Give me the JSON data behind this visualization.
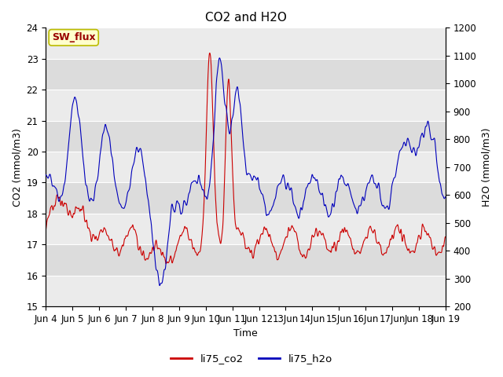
{
  "title": "CO2 and H2O",
  "xlabel": "Time",
  "ylabel_left": "CO2 (mmol/m3)",
  "ylabel_right": "H2O (mmol/m3)",
  "ylim_left": [
    15.0,
    24.0
  ],
  "ylim_right": [
    200,
    1200
  ],
  "yticks_left": [
    15.0,
    16.0,
    17.0,
    18.0,
    19.0,
    20.0,
    21.0,
    22.0,
    23.0,
    24.0
  ],
  "yticks_right": [
    200,
    300,
    400,
    500,
    600,
    700,
    800,
    900,
    1000,
    1100,
    1200
  ],
  "xtick_labels": [
    "Jun 4",
    "Jun 5",
    "Jun 6",
    "Jun 7",
    "Jun 8",
    "Jun 9",
    "Jun 10",
    "Jun 11",
    "Jun 12",
    "13Jun",
    "14Jun",
    "15Jun",
    "16Jun",
    "17Jun",
    "Jun 18",
    "Jun 19"
  ],
  "color_co2": "#cc0000",
  "color_h2o": "#0000bb",
  "legend_co2": "li75_co2",
  "legend_h2o": "li75_h2o",
  "annotation_label": "SW_flux",
  "annotation_color": "#990000",
  "annotation_bg": "#ffffcc",
  "annotation_border": "#bbbb00",
  "bg_dark": "#dcdcdc",
  "bg_light": "#ebebeb",
  "title_fontsize": 11,
  "axis_fontsize": 9,
  "tick_fontsize": 8.5
}
